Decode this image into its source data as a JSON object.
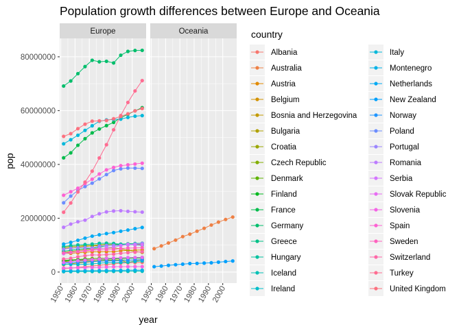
{
  "chart_data": {
    "type": "line",
    "title": "Population growth differences between Europe and Oceania",
    "xlabel": "year",
    "ylabel": "pop",
    "facets": [
      "Europe",
      "Oceania"
    ],
    "x": [
      1952,
      1957,
      1962,
      1967,
      1972,
      1977,
      1982,
      1987,
      1992,
      1997,
      2002,
      2007
    ],
    "x_ticks": [
      "1950",
      "1960",
      "1970",
      "1980",
      "1990",
      "2000"
    ],
    "y_ticks": [
      "0",
      "20000000",
      "40000000",
      "60000000",
      "80000000"
    ],
    "xlim": [
      1949.25,
      2009.75
    ],
    "ylim": [
      -4100000,
      86850000
    ],
    "grid": true,
    "legend_title": "country",
    "legend_position": "right",
    "series": [
      {
        "name": "Albania",
        "color": "#F8766D",
        "facet": "Europe",
        "values": [
          1282697,
          1476505,
          1728137,
          1984060,
          2263554,
          2509048,
          2780097,
          3075321,
          3326498,
          3428038,
          3508512,
          3600523
        ]
      },
      {
        "name": "Australia",
        "color": "#EE8044",
        "facet": "Oceania",
        "values": [
          8691212,
          9712569,
          10794968,
          11872264,
          13177000,
          14074100,
          15184200,
          16257249,
          17481977,
          18565243,
          19546792,
          20434176
        ]
      },
      {
        "name": "Austria",
        "color": "#E18A00",
        "facet": "Europe",
        "values": [
          6927772,
          6965860,
          7129864,
          7376998,
          7544201,
          7568430,
          7574613,
          7578903,
          7914969,
          8069876,
          8148312,
          8199783
        ]
      },
      {
        "name": "Belgium",
        "color": "#D39200",
        "facet": "Europe",
        "values": [
          8730405,
          8989111,
          9218400,
          9556500,
          9709100,
          9821800,
          9856303,
          9870200,
          10045622,
          10199787,
          10311970,
          10392226
        ]
      },
      {
        "name": "Bosnia and Herzegovina",
        "color": "#C39A00",
        "facet": "Europe",
        "values": [
          2791000,
          3076000,
          3349000,
          3585000,
          3819000,
          4086000,
          4172693,
          4338977,
          4256013,
          3607000,
          4165416,
          4552198
        ]
      },
      {
        "name": "Bulgaria",
        "color": "#B0A100",
        "facet": "Europe",
        "values": [
          7274900,
          7651254,
          8012946,
          8310226,
          8576200,
          8797022,
          8892098,
          8971958,
          8658506,
          8066057,
          7661799,
          7322858
        ]
      },
      {
        "name": "Croatia",
        "color": "#9AA700",
        "facet": "Europe",
        "values": [
          3882229,
          3991242,
          4076557,
          4174366,
          4225310,
          4318673,
          4413368,
          4484310,
          4494013,
          4444595,
          4481020,
          4493312
        ]
      },
      {
        "name": "Czech Republic",
        "color": "#81AD00",
        "facet": "Europe",
        "values": [
          9125183,
          9513758,
          9620282,
          9835109,
          9862158,
          10161915,
          10303704,
          10311597,
          10315702,
          10300707,
          10256295,
          10228744
        ]
      },
      {
        "name": "Denmark",
        "color": "#5EB300",
        "facet": "Europe",
        "values": [
          4334000,
          4487831,
          4646899,
          4838800,
          4991596,
          5088419,
          5117810,
          5127024,
          5171393,
          5283663,
          5374693,
          5468120
        ]
      },
      {
        "name": "Finland",
        "color": "#00B81F",
        "facet": "Europe",
        "values": [
          4090500,
          4324000,
          4491443,
          4605744,
          4639657,
          4738902,
          4826933,
          4931729,
          5041039,
          5134406,
          5193039,
          5238460
        ]
      },
      {
        "name": "France",
        "color": "#00BB4B",
        "facet": "Europe",
        "values": [
          42459667,
          44310863,
          47124000,
          49569000,
          51732000,
          53165019,
          54433565,
          55630100,
          57374179,
          58623428,
          59925035,
          61083916
        ]
      },
      {
        "name": "Germany",
        "color": "#00BE6C",
        "facet": "Europe",
        "values": [
          69145952,
          71019069,
          73739117,
          76368453,
          78717088,
          78160773,
          78335266,
          77718298,
          80597764,
          82011073,
          82350671,
          82400996
        ]
      },
      {
        "name": "Greece",
        "color": "#00C087",
        "facet": "Europe",
        "values": [
          7733250,
          8096218,
          8448233,
          8716441,
          8888628,
          9308479,
          9786480,
          9974490,
          10325429,
          10502372,
          10603863,
          10706290
        ]
      },
      {
        "name": "Hungary",
        "color": "#00C19F",
        "facet": "Europe",
        "values": [
          9504000,
          9839000,
          10063000,
          10223422,
          10394091,
          10637171,
          10705535,
          10612740,
          10348684,
          10244684,
          10083313,
          9956108
        ]
      },
      {
        "name": "Iceland",
        "color": "#00C0B5",
        "facet": "Europe",
        "values": [
          147962,
          165110,
          182053,
          198676,
          209275,
          221823,
          233997,
          244676,
          259012,
          271192,
          288030,
          301931
        ]
      },
      {
        "name": "Ireland",
        "color": "#00BDC9",
        "facet": "Europe",
        "values": [
          2952156,
          2878220,
          2830000,
          2900100,
          3024400,
          3271900,
          3480000,
          3539900,
          3557761,
          3667233,
          3879155,
          4109086
        ]
      },
      {
        "name": "Italy",
        "color": "#00B8DA",
        "facet": "Europe",
        "values": [
          47666000,
          49182000,
          50843200,
          52667100,
          54365564,
          56059245,
          56535636,
          56729703,
          56840847,
          57479469,
          57926999,
          58147733
        ]
      },
      {
        "name": "Montenegro",
        "color": "#00B2E8",
        "facet": "Europe",
        "values": [
          413834,
          442829,
          474528,
          501035,
          527678,
          560073,
          562548,
          569473,
          621621,
          692651,
          720230,
          684736
        ]
      },
      {
        "name": "Netherlands",
        "color": "#00AAF4",
        "facet": "Europe",
        "values": [
          10381988,
          11026383,
          11805689,
          12596822,
          13329874,
          13852989,
          14310401,
          14665278,
          15174244,
          15604464,
          16122830,
          16570613
        ]
      },
      {
        "name": "New Zealand",
        "color": "#00A0FC",
        "facet": "Oceania",
        "values": [
          1994794,
          2229407,
          2488550,
          2728150,
          2929100,
          3164900,
          3210650,
          3317166,
          3437674,
          3676187,
          3908037,
          4115771
        ]
      },
      {
        "name": "Norway",
        "color": "#1F95FF",
        "facet": "Europe",
        "values": [
          3327728,
          3491938,
          3638919,
          3786019,
          3933004,
          4043205,
          4114787,
          4186147,
          4286357,
          4405672,
          4535591,
          4627926
        ]
      },
      {
        "name": "Poland",
        "color": "#6C8DFF",
        "facet": "Europe",
        "values": [
          25730551,
          28235346,
          30329617,
          31785378,
          33039545,
          34621254,
          36227381,
          37740710,
          38370697,
          38654957,
          38625976,
          38518241
        ]
      },
      {
        "name": "Portugal",
        "color": "#9B85FF",
        "facet": "Europe",
        "values": [
          8526050,
          8817650,
          9019800,
          9103000,
          8970450,
          9662600,
          9859650,
          9915289,
          9927680,
          10156415,
          10433867,
          10642836
        ]
      },
      {
        "name": "Romania",
        "color": "#BC7BFF",
        "facet": "Europe",
        "values": [
          16630000,
          17829327,
          18680721,
          19284814,
          20662648,
          21658597,
          22356726,
          22686371,
          22797027,
          22562458,
          22404337,
          22276056
        ]
      },
      {
        "name": "Serbia",
        "color": "#D475FF",
        "facet": "Europe",
        "values": [
          6860147,
          7271135,
          7616060,
          7971222,
          8313288,
          8686367,
          9032824,
          9230783,
          9826397,
          10336594,
          10111559,
          10150265
        ]
      },
      {
        "name": "Slovak Republic",
        "color": "#E76BF3",
        "facet": "Europe",
        "values": [
          3558137,
          3844277,
          4237384,
          4442238,
          4593433,
          4827803,
          5048043,
          5199318,
          5302888,
          5383010,
          5410052,
          5447502
        ]
      },
      {
        "name": "Slovenia",
        "color": "#F464E5",
        "facet": "Europe",
        "values": [
          1489518,
          1533070,
          1582962,
          1646912,
          1694510,
          1746919,
          1861252,
          1945870,
          1999210,
          2011612,
          2011497,
          2009245
        ]
      },
      {
        "name": "Spain",
        "color": "#FD61D3",
        "facet": "Europe",
        "values": [
          28549870,
          29841614,
          31158061,
          32850275,
          34513161,
          36439000,
          37983310,
          38880702,
          39549438,
          39855442,
          40152517,
          40448191
        ]
      },
      {
        "name": "Sweden",
        "color": "#FF62BF",
        "facet": "Europe",
        "values": [
          7124673,
          7363802,
          7561588,
          7867931,
          8122293,
          8251648,
          8325260,
          8421403,
          8718867,
          8897619,
          8954175,
          9031088
        ]
      },
      {
        "name": "Switzerland",
        "color": "#FF67A8",
        "facet": "Europe",
        "values": [
          4815000,
          5126000,
          5666000,
          6063000,
          6401400,
          6316424,
          6468126,
          6649942,
          6995447,
          7193761,
          7361757,
          7554661
        ]
      },
      {
        "name": "Turkey",
        "color": "#FF6C91",
        "facet": "Europe",
        "values": [
          22235677,
          25670939,
          29788695,
          33411317,
          37492953,
          42404033,
          47328791,
          52881328,
          58179144,
          63047647,
          67308928,
          71158647
        ]
      },
      {
        "name": "United Kingdom",
        "color": "#FC717F",
        "facet": "Europe",
        "values": [
          50430000,
          51430000,
          53292000,
          54959000,
          56079000,
          56179000,
          56339704,
          56981620,
          57866349,
          58808266,
          59912431,
          60776238
        ]
      }
    ]
  }
}
